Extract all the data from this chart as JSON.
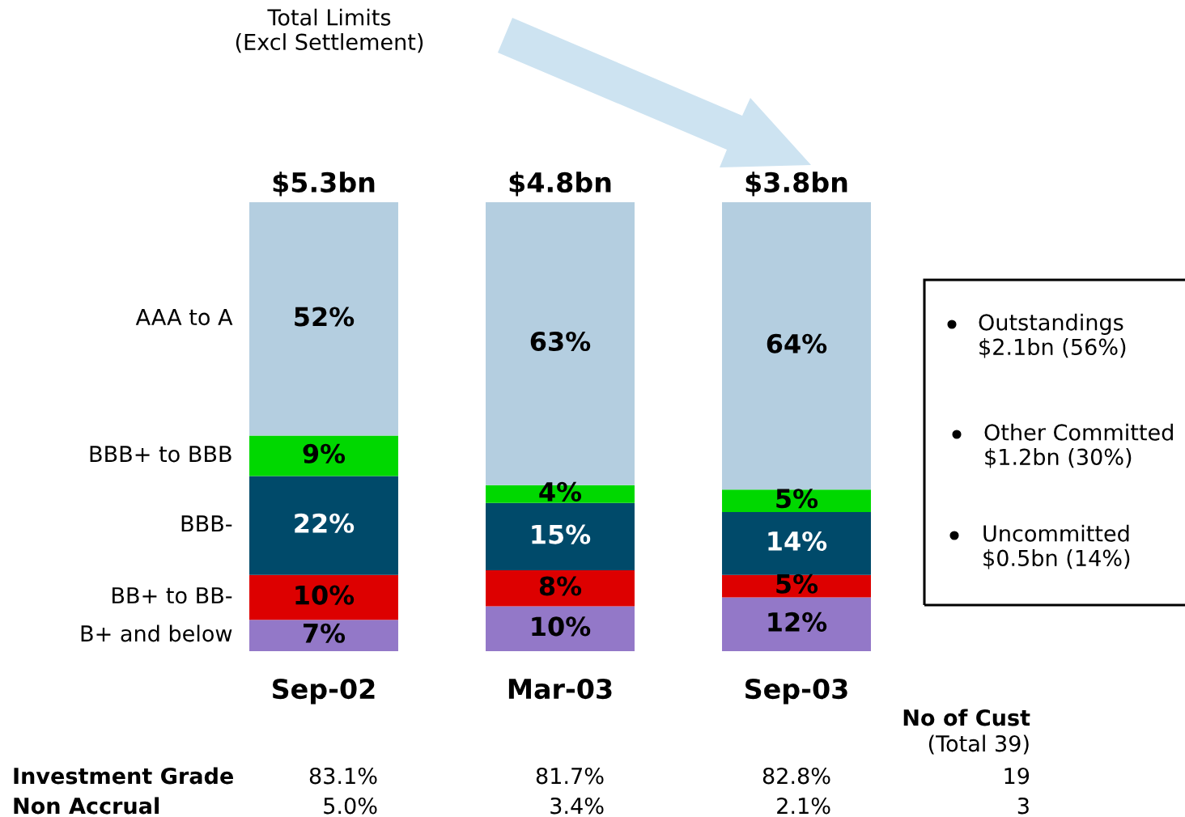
{
  "chart_data": {
    "type": "bar",
    "title": "Total Limits\n(Excl Settlement)",
    "categories": [
      "Sep-02",
      "Mar-03",
      "Sep-03"
    ],
    "stacked": true,
    "series": [
      {
        "name": "B+ and below",
        "color": "#9378c8",
        "values": [
          7,
          10,
          12
        ],
        "value_labels": [
          "7%",
          "10%",
          "12%"
        ]
      },
      {
        "name": "BB+ to BB-",
        "color": "#dd0000",
        "values": [
          10,
          8,
          5
        ],
        "value_labels": [
          "10%",
          "8%",
          "5%"
        ]
      },
      {
        "name": "BBB-",
        "color": "#004a6a",
        "values": [
          22,
          15,
          14
        ],
        "value_labels": [
          "22%",
          "15%",
          "14%"
        ]
      },
      {
        "name": "BBB+ to BBB",
        "color": "#00d800",
        "values": [
          9,
          4,
          5
        ],
        "value_labels": [
          "9%",
          "4%",
          "5%"
        ]
      },
      {
        "name": "AAA to A",
        "color": "#b4cee0",
        "values": [
          52,
          63,
          64
        ],
        "value_labels": [
          "52%",
          "63%",
          "64%"
        ]
      }
    ],
    "annotations": [
      {
        "text": "$5.3bn",
        "x": "Sep-02",
        "y": 100
      },
      {
        "text": "$4.8bn",
        "x": "Mar-03",
        "y": 100
      },
      {
        "text": "$3.8bn",
        "x": "Sep-03",
        "y": 100
      },
      "Outstandings\n$2.1bn (56%)",
      "Other Committed\n$1.2bn (30%)",
      "Uncommitted\n$0.5bn (14%)",
      "No of Cust",
      "(Total 39)",
      "Investment Grade",
      "83.1%",
      "81.7%",
      "82.8%",
      "19",
      "Non Accrual",
      "5.0%",
      "3.4%",
      "2.1%",
      "3"
    ]
  }
}
